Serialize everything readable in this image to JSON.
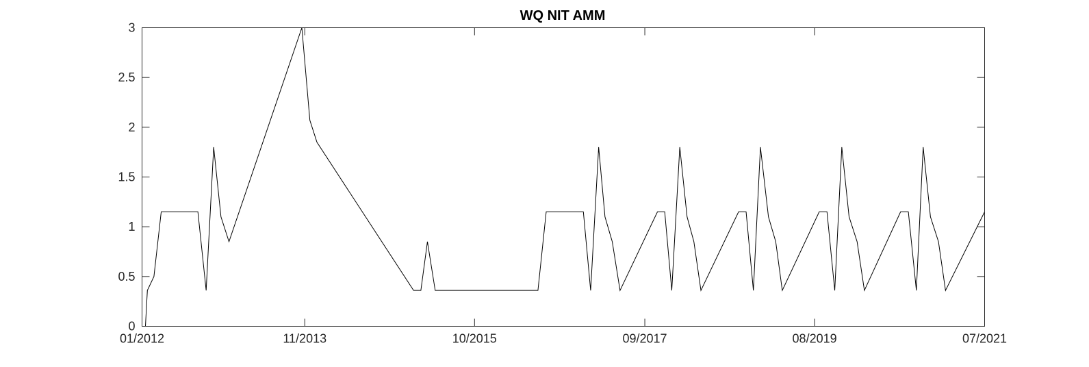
{
  "chart_data": {
    "type": "line",
    "title": "WQ NIT AMM",
    "xlabel": "",
    "ylabel": "",
    "xlim": [
      "2012-01-01",
      "2021-07-01"
    ],
    "ylim": [
      0,
      3
    ],
    "xticks": [
      {
        "date": "2012-01-01",
        "label": "01/2012"
      },
      {
        "date": "2013-11-01",
        "label": "11/2013"
      },
      {
        "date": "2015-10-01",
        "label": "10/2015"
      },
      {
        "date": "2017-09-01",
        "label": "09/2017"
      },
      {
        "date": "2019-08-01",
        "label": "08/2019"
      },
      {
        "date": "2021-07-01",
        "label": "07/2021"
      }
    ],
    "yticks": [
      {
        "value": 0,
        "label": "0"
      },
      {
        "value": 0.5,
        "label": "0.5"
      },
      {
        "value": 1,
        "label": "1"
      },
      {
        "value": 1.5,
        "label": "1.5"
      },
      {
        "value": 2,
        "label": "2"
      },
      {
        "value": 2.5,
        "label": "2.5"
      },
      {
        "value": 3,
        "label": "3"
      }
    ],
    "grid": false,
    "series": [
      {
        "color": "#000000",
        "x": [
          "2012-01-15",
          "2012-01-23",
          "2012-02-19",
          "2012-03-20",
          "2012-08-18",
          "2012-09-21",
          "2012-10-22",
          "2012-11-21",
          "2012-12-24",
          "2013-10-20",
          "2013-11-22",
          "2013-12-21",
          "2015-01-23",
          "2015-02-22",
          "2015-03-21",
          "2015-04-22",
          "2015-05-21",
          "2016-06-18",
          "2016-07-22",
          "2016-12-22",
          "2017-01-21",
          "2017-02-23",
          "2017-03-21",
          "2017-04-20",
          "2017-05-22",
          "2017-10-23",
          "2017-11-22",
          "2017-12-21",
          "2018-01-23",
          "2018-02-22",
          "2018-03-22",
          "2018-04-20",
          "2018-09-22",
          "2018-10-23",
          "2018-11-22",
          "2018-12-21",
          "2019-01-23",
          "2019-02-22",
          "2019-03-21",
          "2019-08-20",
          "2019-09-21",
          "2019-10-23",
          "2019-11-21",
          "2019-12-21",
          "2020-01-23",
          "2020-02-22",
          "2020-07-20",
          "2020-08-21",
          "2020-09-23",
          "2020-10-21",
          "2020-11-20",
          "2020-12-23",
          "2021-01-21",
          "2021-07-01"
        ],
        "y": [
          0,
          0.36,
          0.5,
          1.15,
          1.15,
          0.36,
          1.8,
          1.1,
          0.85,
          3,
          2.07,
          1.85,
          0.36,
          0.36,
          0.85,
          0.36,
          0.36,
          0.36,
          1.15,
          1.15,
          0.36,
          1.8,
          1.1,
          0.85,
          0.36,
          1.15,
          1.15,
          0.36,
          1.8,
          1.1,
          0.85,
          0.36,
          1.15,
          1.15,
          0.36,
          1.8,
          1.1,
          0.85,
          0.36,
          1.15,
          1.15,
          0.36,
          1.8,
          1.1,
          0.85,
          0.36,
          1.15,
          1.15,
          0.36,
          1.8,
          1.1,
          0.85,
          0.36,
          1.15
        ]
      }
    ]
  }
}
